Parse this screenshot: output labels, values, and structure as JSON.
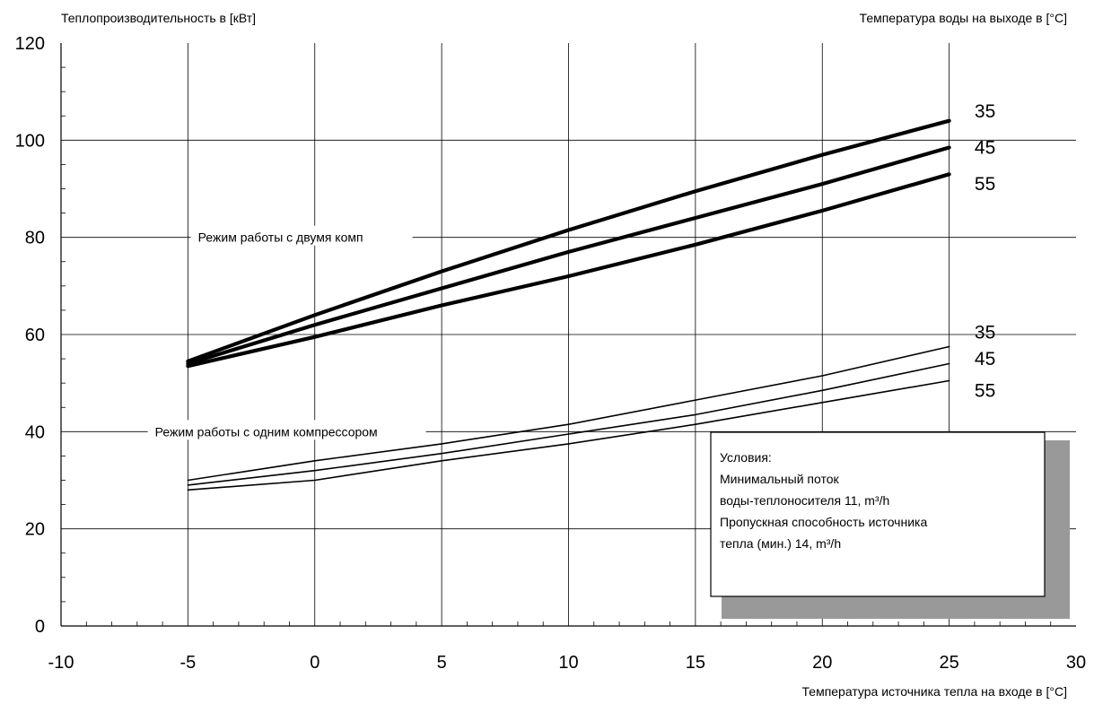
{
  "chart_data": {
    "type": "line",
    "ylabel": "Теплопроизводительность в [кВт]",
    "xlabel": "Температура источника тепла на входе в [°C]",
    "legend_title": "Температура воды на выходе в [°C]",
    "xlim": [
      -10,
      30
    ],
    "ylim": [
      0,
      120
    ],
    "x_ticks": [
      "-10",
      "-5",
      "0",
      "5",
      "10",
      "15",
      "20",
      "25",
      "30"
    ],
    "y_ticks": [
      "0",
      "20",
      "40",
      "60",
      "80",
      "100",
      "120"
    ],
    "grid": true,
    "groups": [
      {
        "label": "Режим работы с двумя комп",
        "series": [
          {
            "name": "35",
            "x": [
              -5,
              0,
              5,
              10,
              15,
              20,
              25
            ],
            "y": [
              54.5,
              64,
              73,
              81.5,
              89.5,
              97,
              104
            ]
          },
          {
            "name": "45",
            "x": [
              -5,
              0,
              5,
              10,
              15,
              20,
              25
            ],
            "y": [
              54,
              62,
              69.5,
              77,
              84,
              91,
              98.5
            ]
          },
          {
            "name": "55",
            "x": [
              -5,
              0,
              5,
              10,
              15,
              20,
              25
            ],
            "y": [
              53.5,
              59.5,
              66,
              72,
              78.5,
              85.5,
              93
            ]
          }
        ]
      },
      {
        "label": "Режим работы с одним компрессором",
        "series": [
          {
            "name": "35",
            "x": [
              -5,
              0,
              5,
              10,
              15,
              20,
              25
            ],
            "y": [
              30,
              34,
              37.5,
              41.5,
              46.5,
              51.5,
              57.5
            ]
          },
          {
            "name": "45",
            "x": [
              -5,
              0,
              5,
              10,
              15,
              20,
              25
            ],
            "y": [
              29,
              32,
              35.5,
              39.5,
              43.5,
              48.5,
              54
            ]
          },
          {
            "name": "55",
            "x": [
              -5,
              0,
              5,
              10,
              15,
              20,
              25
            ],
            "y": [
              28,
              30,
              34,
              37.5,
              41.5,
              46,
              50.5
            ]
          }
        ]
      }
    ],
    "annotation": {
      "title": "Условия:",
      "lines": [
        "Минимальный поток",
        "воды-теплоносителя 11, m³/h",
        "Пропускная способность источника",
        "тепла (мин.) 14, m³/h"
      ]
    }
  }
}
